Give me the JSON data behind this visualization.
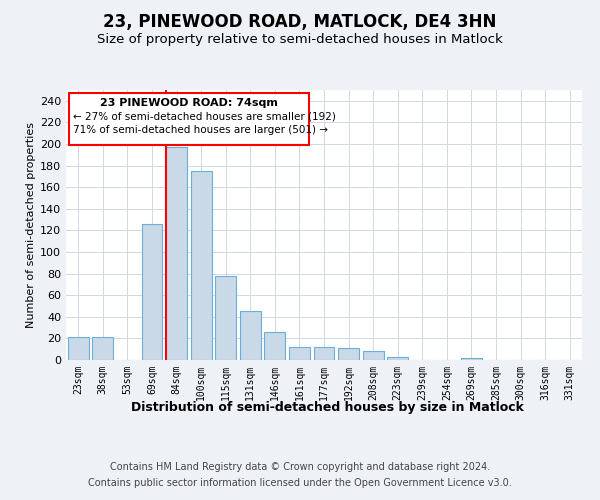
{
  "title": "23, PINEWOOD ROAD, MATLOCK, DE4 3HN",
  "subtitle": "Size of property relative to semi-detached houses in Matlock",
  "xlabel": "Distribution of semi-detached houses by size in Matlock",
  "ylabel": "Number of semi-detached properties",
  "categories": [
    "23sqm",
    "38sqm",
    "53sqm",
    "69sqm",
    "84sqm",
    "100sqm",
    "115sqm",
    "131sqm",
    "146sqm",
    "161sqm",
    "177sqm",
    "192sqm",
    "208sqm",
    "223sqm",
    "239sqm",
    "254sqm",
    "269sqm",
    "285sqm",
    "300sqm",
    "316sqm",
    "331sqm"
  ],
  "values": [
    21,
    21,
    0,
    126,
    197,
    175,
    78,
    45,
    26,
    12,
    12,
    11,
    8,
    3,
    0,
    0,
    2,
    0,
    0,
    0,
    0
  ],
  "bar_color": "#c9d9e8",
  "bar_edge_color": "#6baed6",
  "red_line_index": 4,
  "ylim": [
    0,
    250
  ],
  "yticks": [
    0,
    20,
    40,
    60,
    80,
    100,
    120,
    140,
    160,
    180,
    200,
    220,
    240
  ],
  "annotation_title": "23 PINEWOOD ROAD: 74sqm",
  "annotation_line1": "← 27% of semi-detached houses are smaller (192)",
  "annotation_line2": "71% of semi-detached houses are larger (501) →",
  "footer1": "Contains HM Land Registry data © Crown copyright and database right 2024.",
  "footer2": "Contains public sector information licensed under the Open Government Licence v3.0.",
  "background_color": "#eef2f7",
  "plot_bg_color": "#ffffff",
  "grid_color": "#d0d8e4",
  "title_fontsize": 12,
  "subtitle_fontsize": 9.5,
  "xlabel_fontsize": 9,
  "ylabel_fontsize": 8,
  "footer_fontsize": 7
}
